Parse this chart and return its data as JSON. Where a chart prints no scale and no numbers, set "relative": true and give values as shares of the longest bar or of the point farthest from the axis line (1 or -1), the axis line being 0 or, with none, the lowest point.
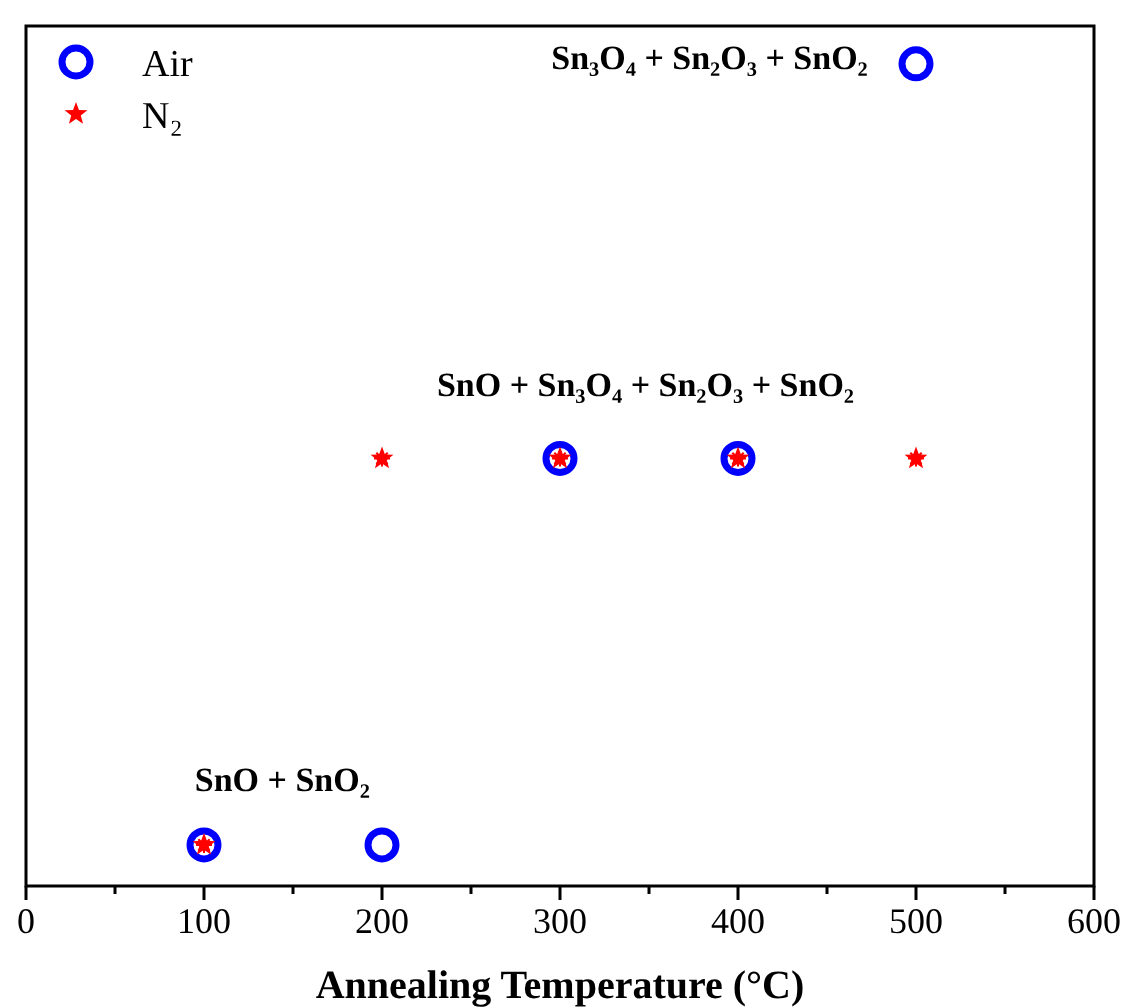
{
  "chart_data": {
    "type": "scatter",
    "xlabel": "Annealing Temperature (°C)",
    "relative": true,
    "xlim": [
      0,
      600
    ],
    "xticks": [
      0,
      {
        "value": 50,
        "label": null
      },
      100,
      {
        "value": 150,
        "label": null
      },
      200,
      {
        "value": 250,
        "label": null
      },
      300,
      {
        "value": 350,
        "label": null
      },
      400,
      {
        "value": 450,
        "label": null
      },
      500,
      {
        "value": 550,
        "label": null
      },
      600
    ],
    "tick_labels": "x",
    "legend": "top left",
    "grid": false,
    "series": [
      {
        "name": "Air",
        "color": "#0000ff",
        "marker": "circle",
        "x": [
          100,
          200,
          300,
          400,
          500
        ],
        "values": [
          0.05,
          0.05,
          0.52,
          0.52,
          1
        ]
      },
      {
        "name": "N₂",
        "color": "#ff0000",
        "marker": "star",
        "x": [
          100,
          200,
          300,
          400,
          500
        ],
        "values": [
          0.05,
          0.52,
          0.52,
          0.52,
          0.52
        ]
      }
    ],
    "annotations": [
      "SnO + SnO₂",
      "SnO + Sn₃O₄ + Sn₂O₃ + SnO₂",
      "Sn₃O₄ + Sn₂O₃ + SnO₂"
    ]
  }
}
